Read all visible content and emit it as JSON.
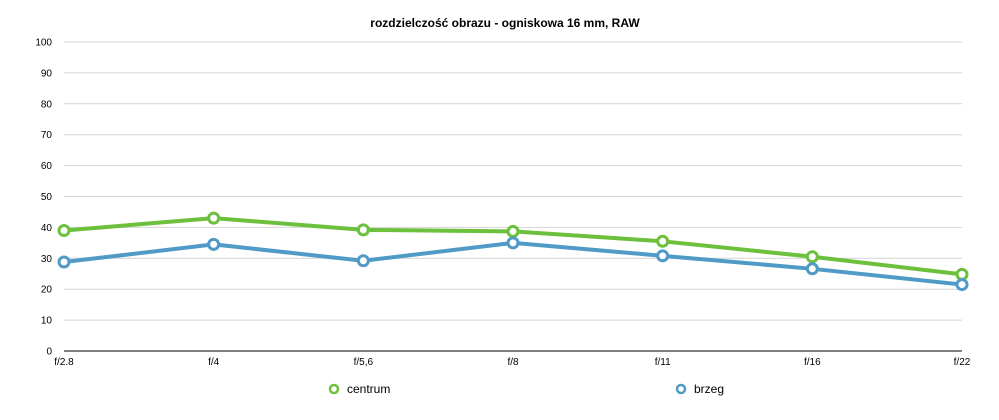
{
  "chart_data": {
    "type": "line",
    "title": "rozdzielczość obrazu - ogniskowa 16 mm, RAW",
    "xlabel": "",
    "ylabel": "",
    "categories": [
      "f/2.8",
      "f/4",
      "f/5,6",
      "f/8",
      "f/11",
      "f/16",
      "f/22"
    ],
    "ylim": [
      0,
      100
    ],
    "yticks": [
      0,
      10,
      20,
      30,
      40,
      50,
      60,
      70,
      80,
      90,
      100
    ],
    "grid": true,
    "legend_position": "bottom",
    "series": [
      {
        "name": "centrum",
        "color": "#6cc03c",
        "values": [
          39,
          43,
          39.2,
          38.7,
          35.5,
          30.5,
          24.8
        ]
      },
      {
        "name": "brzeg",
        "color": "#4f9ac7",
        "values": [
          28.8,
          34.5,
          29.2,
          35,
          30.8,
          26.6,
          21.5
        ]
      }
    ]
  }
}
